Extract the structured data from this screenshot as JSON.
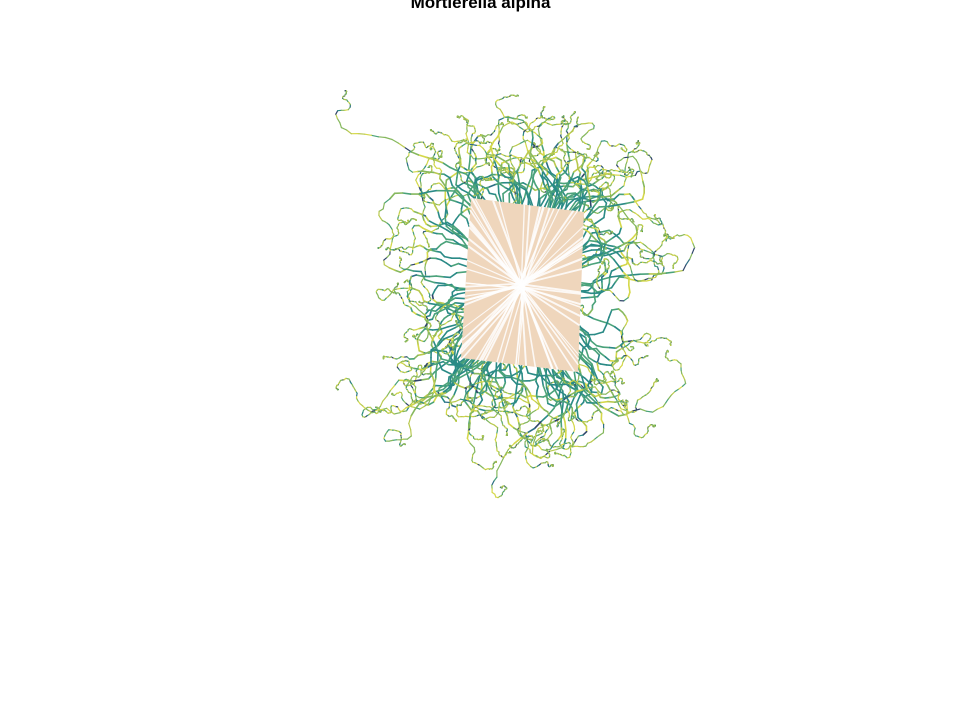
{
  "title": "Mortierella alpina",
  "colors": {
    "background": "#ffffff",
    "inoculum": "#efd6bc",
    "inoculum_rays": "#ffffff",
    "hyphae_palette": [
      "#30456b",
      "#2d6e85",
      "#2a8a86",
      "#4aa27a",
      "#86b85e",
      "#b9c94f",
      "#d5d84a"
    ]
  }
}
